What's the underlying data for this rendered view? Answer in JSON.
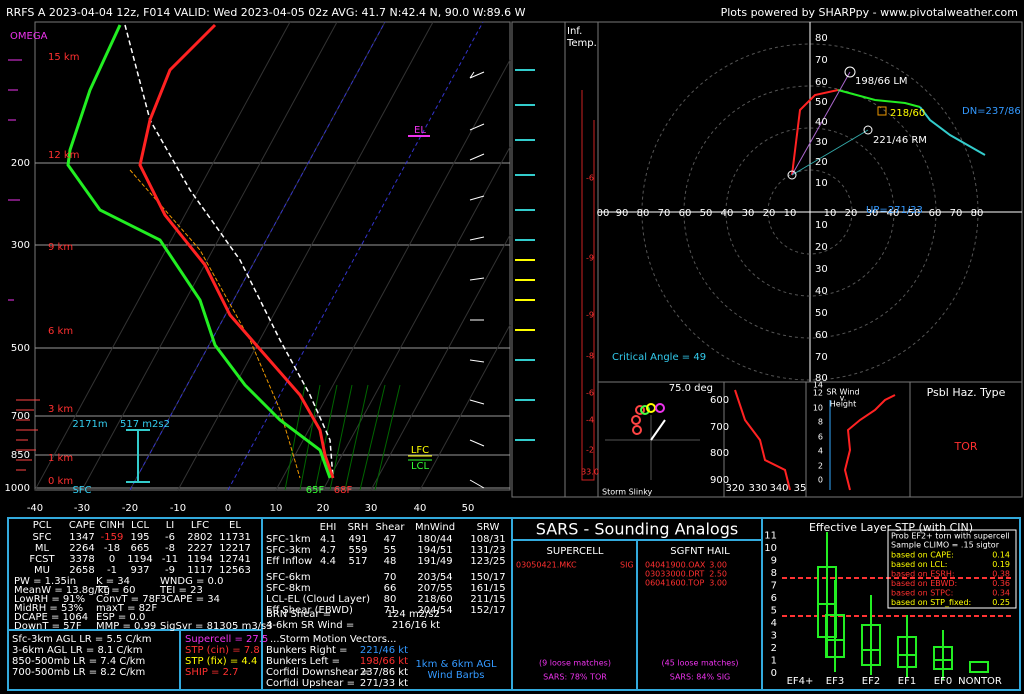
{
  "header": {
    "title": "RRFS A 2023-04-04 12z, F014  VALID: Wed 2023-04-05 02z  AVG: 41.7 N:42.4 N, 90.0 W:89.6 W",
    "credit": "Plots powered by SHARPpy - www.pivotalweather.com"
  },
  "skewt": {
    "omega": "OMEGA",
    "pressure_labels": [
      "200",
      "300",
      "500",
      "700",
      "850",
      "1000"
    ],
    "height_labels": [
      "15 km",
      "12 km",
      "9 km",
      "6 km",
      "3 km",
      "1 km",
      "0 km"
    ],
    "temp_labels": [
      "-40",
      "-30",
      "-20",
      "-10",
      "0",
      "10",
      "20",
      "30",
      "40",
      "50"
    ],
    "el": "EL",
    "lfc": "LFC",
    "lcl": "LCL",
    "sfc": "SFC",
    "dewpoint_sfc": "65F",
    "temp_sfc": "68F",
    "eff_inflow_top": "2171m",
    "eff_srh": "517 m2s2"
  },
  "inferred": {
    "title": [
      "Inf.",
      "Temp."
    ],
    "values": [
      "-6",
      "-9",
      "-9",
      "-8",
      "-6",
      "-4",
      "-2",
      "33.0"
    ]
  },
  "hodograph": {
    "ticks_up": [
      "10",
      "20",
      "30",
      "40",
      "50",
      "60",
      "70",
      "80"
    ],
    "ticks_down": [
      "10",
      "20",
      "30",
      "40",
      "50",
      "60",
      "70",
      "80"
    ],
    "ticks_left": [
      "00",
      "90",
      "80",
      "70",
      "60",
      "50",
      "40",
      "30",
      "20",
      "10"
    ],
    "ticks_right": [
      "10",
      "20",
      "30",
      "40",
      "50",
      "60",
      "70",
      "80"
    ],
    "left_mover": "198/66 LM",
    "right_mover": "221/46 RM",
    "downshear": "DN=237/86",
    "upshear": "UP=271/33",
    "mean_wind": "218/60",
    "critical_angle": "Critical Angle = 49"
  },
  "slinky": {
    "angle": "75.0 deg",
    "title": "Storm Slinky"
  },
  "theta": {
    "yticks": [
      "600",
      "700",
      "800",
      "900"
    ],
    "xticks": [
      "320",
      "330",
      "340",
      "35"
    ]
  },
  "srwind": {
    "title": [
      "SR Wind",
      "v.",
      "Height"
    ],
    "yticks": [
      "0",
      "2",
      "4",
      "6",
      "8",
      "10",
      "12",
      "14",
      "16"
    ]
  },
  "hazard": {
    "title": "Psbl Haz. Type",
    "value": "TOR"
  },
  "thermo": {
    "header": [
      "PCL",
      "CAPE",
      "CINH",
      "LCL",
      "LI",
      "LFC",
      "EL"
    ],
    "rows": [
      [
        "SFC",
        "1347",
        "-159",
        "195",
        "-6",
        "2802",
        "11731"
      ],
      [
        "ML",
        "2264",
        "-18",
        "665",
        "-8",
        "2227",
        "12217"
      ],
      [
        "FCST",
        "3378",
        "0",
        "1194",
        "-11",
        "1194",
        "12741"
      ],
      [
        "MU",
        "2658",
        "-1",
        "937",
        "-9",
        "1117",
        "12563"
      ]
    ],
    "indices": [
      [
        "PW = 1.35in",
        "K = 34",
        "WNDG = 0.0"
      ],
      [
        "MeanW = 13.8g/kg",
        "TT = 60",
        "TEI = 23"
      ],
      [
        "LowRH = 91%",
        "ConvT = 78F",
        "3CAPE = 34"
      ],
      [
        "MidRH = 53%",
        "maxT = 82F",
        ""
      ],
      [
        "DCAPE = 1064",
        "ESP = 0.0",
        ""
      ],
      [
        "DownT = 57F",
        "MMP = 0.99",
        "SigSvr = 81305 m3/s3"
      ]
    ],
    "lapse": [
      "Sfc-3km AGL LR = 5.5 C/km",
      "3-6km AGL LR = 8.1 C/km",
      "850-500mb LR = 7.4 C/km",
      "700-500mb LR = 8.2 C/km"
    ],
    "composites": [
      "Supercell = 27.5",
      "STP (cin) = 7.8",
      "STP (fix) = 4.4",
      "SHIP = 2.7"
    ]
  },
  "kinematic": {
    "header": [
      "EHI",
      "SRH",
      "Shear",
      "MnWind",
      "SRW"
    ],
    "rows": [
      [
        "SFC-1km",
        "4.1",
        "491",
        "47",
        "180/44",
        "108/31"
      ],
      [
        "SFC-3km",
        "4.7",
        "559",
        "55",
        "194/51",
        "131/23"
      ],
      [
        "Eff Inflow",
        "4.4",
        "517",
        "48",
        "191/49",
        "123/25"
      ],
      [
        "SFC-6km",
        "",
        "",
        "70",
        "203/54",
        "150/17"
      ],
      [
        "SFC-8km",
        "",
        "",
        "66",
        "207/55",
        "161/15"
      ],
      [
        "LCL-EL (Cloud Layer)",
        "",
        "",
        "80",
        "218/60",
        "211/15"
      ],
      [
        "Eff Shear (EBWD)",
        "",
        "",
        "71",
        "204/54",
        "152/17"
      ]
    ],
    "extra": [
      [
        "BRN Shear =",
        "124 m2/s2"
      ],
      [
        "4-6km SR Wind =",
        "216/16 kt"
      ]
    ],
    "motion_title": "...Storm Motion Vectors...",
    "motion": [
      [
        "Bunkers Right =",
        "221/46 kt"
      ],
      [
        "Bunkers Left =",
        "198/66 kt"
      ],
      [
        "Corfidi Downshear =",
        "237/86 kt"
      ],
      [
        "Corfidi Upshear =",
        "271/33 kt"
      ]
    ],
    "barbs_label": [
      "1km & 6km AGL",
      "Wind Barbs"
    ]
  },
  "sars": {
    "title": "SARS - Sounding Analogs",
    "supercell": {
      "title": "SUPERCELL",
      "matches": [
        [
          "03050421.MKC",
          "SIG"
        ]
      ],
      "loose": "(9 loose matches)",
      "summary": "SARS: 78% TOR"
    },
    "hail": {
      "title": "SGFNT HAIL",
      "matches": [
        [
          "04041900.OAX",
          "3.00"
        ],
        [
          "03033000.DRT",
          "2.50"
        ],
        [
          "06041600.TOP",
          "3.00"
        ]
      ],
      "loose": "(45 loose matches)",
      "summary": "SARS: 84% SIG"
    }
  },
  "stp": {
    "title": "Effective Layer STP (with CIN)",
    "yticks": [
      "0",
      "1",
      "2",
      "3",
      "4",
      "5",
      "6",
      "7",
      "8",
      "9",
      "10",
      "11"
    ],
    "categories": [
      "EF4+",
      "EF3",
      "EF2",
      "EF1",
      "EF0",
      "NONTOR"
    ],
    "legend_title": [
      "Prob EF2+ torn with supercell",
      "Sample CLIMO = .15 sigtor"
    ],
    "legend": [
      [
        "based on CAPE:",
        "0.14"
      ],
      [
        "based on LCL:",
        "0.19"
      ],
      [
        "based on ESRH:",
        "0.38"
      ],
      [
        "based on EBWD:",
        "0.36"
      ],
      [
        "based on STPC:",
        "0.34"
      ],
      [
        "based on STP_fixed:",
        "0.25"
      ]
    ]
  }
}
